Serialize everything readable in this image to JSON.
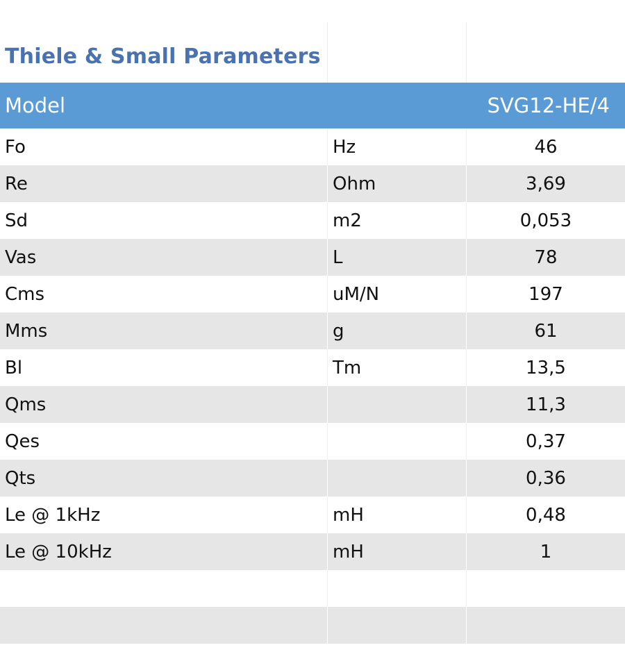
{
  "title": "Thiele & Small Parameters",
  "header": {
    "col1": "Model",
    "col2": "",
    "col3": "SVG12-HE/4"
  },
  "colors": {
    "title": "#4a72b0",
    "header_bg": "#5b9bd5",
    "stripe": "#e7e6e6"
  },
  "rows": [
    {
      "param": "Fo",
      "unit": "Hz",
      "value": "46"
    },
    {
      "param": "Re",
      "unit": "Ohm",
      "value": "3,69"
    },
    {
      "param": "Sd",
      "unit": "m2",
      "value": "0,053"
    },
    {
      "param": "Vas",
      "unit": "L",
      "value": "78"
    },
    {
      "param": "Cms",
      "unit": "uM/N",
      "value": "197"
    },
    {
      "param": "Mms",
      "unit": "g",
      "value": "61"
    },
    {
      "param": "Bl",
      "unit": "Tm",
      "value": "13,5"
    },
    {
      "param": "Qms",
      "unit": "",
      "value": "11,3"
    },
    {
      "param": "Qes",
      "unit": "",
      "value": "0,37"
    },
    {
      "param": "Qts",
      "unit": "",
      "value": "0,36"
    },
    {
      "param": "Le @ 1kHz",
      "unit": "mH",
      "value": "0,48"
    },
    {
      "param": "Le @ 10kHz",
      "unit": "mH",
      "value": "1"
    },
    {
      "param": "",
      "unit": "",
      "value": ""
    },
    {
      "param": "",
      "unit": "",
      "value": ""
    }
  ]
}
